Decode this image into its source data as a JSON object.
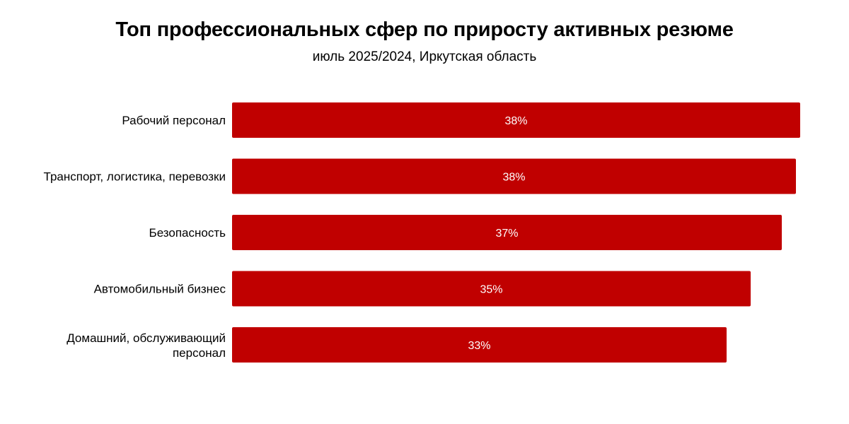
{
  "chart_data": {
    "type": "bar",
    "orientation": "horizontal",
    "title": "Топ профессиональных сфер по приросту активных резюме",
    "subtitle": "июль 2025/2024, Иркутская область",
    "categories": [
      "Рабочий персонал",
      "Транспорт, логистика, перевозки",
      "Безопасность",
      "Автомобильный бизнес",
      "Домашний, обслуживающий персонал"
    ],
    "values": [
      38,
      38,
      37,
      35,
      33
    ],
    "value_labels": [
      "38%",
      "38%",
      "37%",
      "35%",
      "33%"
    ],
    "unit": "%",
    "xlim": [
      0,
      38
    ],
    "grid": false,
    "legend": "none",
    "bar_color": "#c00000",
    "label_color": "#ffffff"
  }
}
